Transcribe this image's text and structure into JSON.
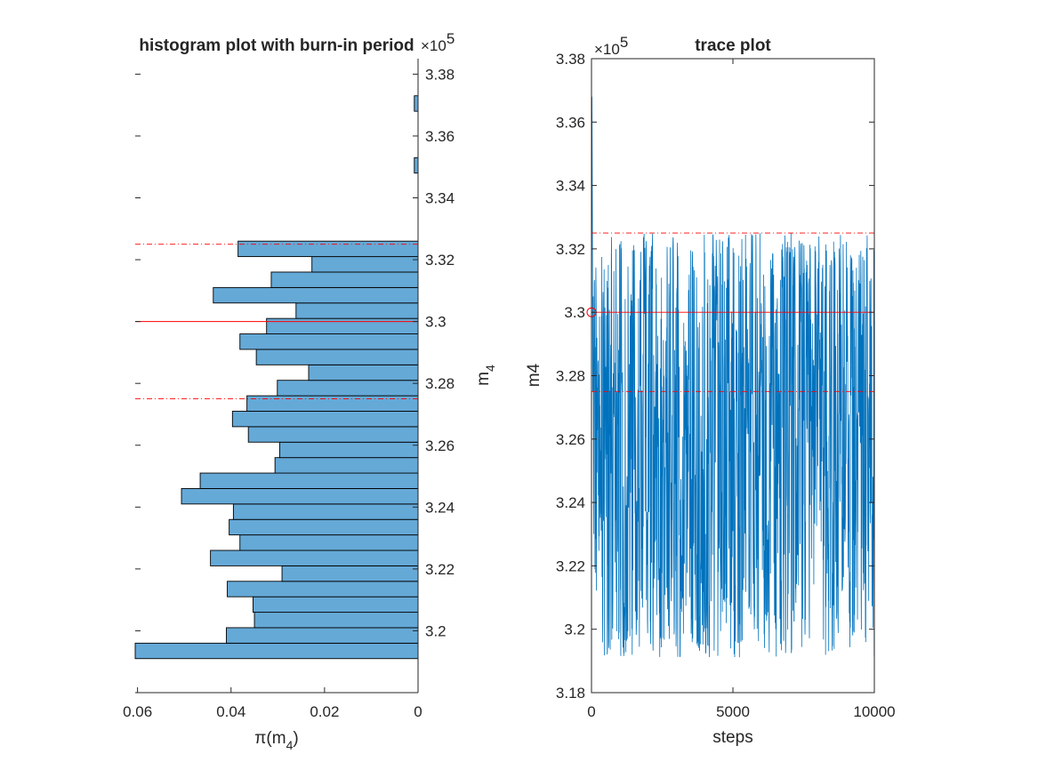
{
  "figure": {
    "background": "#ffffff",
    "axis_color": "#262626"
  },
  "chart_data": [
    {
      "type": "bar",
      "orientation": "horizontal",
      "title": "histogram plot with burn-in period",
      "xlabel": "π(m_4)",
      "xlabel_parts": {
        "base": "π(m",
        "sub": "4",
        "close": ")"
      },
      "ylabel_parts": {
        "base": "m",
        "sub": "4"
      },
      "ylabel_position": "right",
      "x_direction": "reversed",
      "xlim": [
        0,
        0.0605
      ],
      "xticks": [
        0.06,
        0.04,
        0.02,
        0
      ],
      "xtick_labels": [
        "0.06",
        "0.04",
        "0.02",
        "0"
      ],
      "ylim": [
        318000,
        338500
      ],
      "yticks": [
        320000,
        322000,
        324000,
        326000,
        328000,
        330000,
        332000,
        334000,
        336000,
        338000
      ],
      "ytick_labels": [
        "3.2",
        "3.22",
        "3.24",
        "3.26",
        "3.28",
        "3.3",
        "3.32",
        "3.34",
        "3.36",
        "3.38"
      ],
      "y_exponent": "5",
      "bar_color": "#65a9d7",
      "bar_edge": "#000000",
      "bins": [
        {
          "lo": 319100,
          "hi": 319600,
          "value": 0.0605
        },
        {
          "lo": 319600,
          "hi": 320100,
          "value": 0.041
        },
        {
          "lo": 320100,
          "hi": 320600,
          "value": 0.035
        },
        {
          "lo": 320600,
          "hi": 321100,
          "value": 0.0353
        },
        {
          "lo": 321100,
          "hi": 321600,
          "value": 0.0408
        },
        {
          "lo": 321600,
          "hi": 322100,
          "value": 0.0291
        },
        {
          "lo": 322100,
          "hi": 322600,
          "value": 0.0444
        },
        {
          "lo": 322600,
          "hi": 323100,
          "value": 0.0381
        },
        {
          "lo": 323100,
          "hi": 323600,
          "value": 0.0404
        },
        {
          "lo": 323600,
          "hi": 324100,
          "value": 0.0395
        },
        {
          "lo": 324100,
          "hi": 324600,
          "value": 0.0506
        },
        {
          "lo": 324600,
          "hi": 325100,
          "value": 0.0466
        },
        {
          "lo": 325100,
          "hi": 325600,
          "value": 0.0306
        },
        {
          "lo": 325600,
          "hi": 326100,
          "value": 0.0296
        },
        {
          "lo": 326100,
          "hi": 326600,
          "value": 0.0363
        },
        {
          "lo": 326600,
          "hi": 327100,
          "value": 0.0397
        },
        {
          "lo": 327100,
          "hi": 327600,
          "value": 0.0366
        },
        {
          "lo": 327600,
          "hi": 328100,
          "value": 0.0301
        },
        {
          "lo": 328100,
          "hi": 328600,
          "value": 0.0234
        },
        {
          "lo": 328600,
          "hi": 329100,
          "value": 0.0346
        },
        {
          "lo": 329100,
          "hi": 329600,
          "value": 0.0381
        },
        {
          "lo": 329600,
          "hi": 330100,
          "value": 0.0324
        },
        {
          "lo": 330100,
          "hi": 330600,
          "value": 0.0261
        },
        {
          "lo": 330600,
          "hi": 331100,
          "value": 0.0438
        },
        {
          "lo": 331100,
          "hi": 331600,
          "value": 0.0314
        },
        {
          "lo": 331600,
          "hi": 332100,
          "value": 0.0227
        },
        {
          "lo": 332100,
          "hi": 332600,
          "value": 0.0385
        },
        {
          "lo": 334800,
          "hi": 335300,
          "value": 0.0008
        },
        {
          "lo": 336800,
          "hi": 337300,
          "value": 0.0008
        }
      ],
      "reference_lines": [
        {
          "y": 332500,
          "style": "dashdot",
          "color": "#ff0000"
        },
        {
          "y": 330000,
          "style": "solid",
          "color": "#ff0000"
        },
        {
          "y": 327500,
          "style": "dashdot",
          "color": "#ff0000"
        }
      ]
    },
    {
      "type": "line",
      "title": "trace plot",
      "xlabel": "steps",
      "ylabel": "m4",
      "xlim": [
        0,
        10000
      ],
      "xticks": [
        0,
        5000,
        10000
      ],
      "xtick_labels": [
        "0",
        "5000",
        "10000"
      ],
      "ylim": [
        318000,
        338000
      ],
      "yticks": [
        318000,
        320000,
        322000,
        324000,
        326000,
        328000,
        330000,
        332000,
        334000,
        336000,
        338000
      ],
      "ytick_labels": [
        "3.18",
        "3.2",
        "3.22",
        "3.24",
        "3.26",
        "3.28",
        "3.3",
        "3.32",
        "3.34",
        "3.36",
        "3.38"
      ],
      "y_exponent": "5",
      "line_color": "#0072bd",
      "start_marker": {
        "x": 0,
        "y": 330000,
        "color": "#ff0000",
        "shape": "circle"
      },
      "burn_in": [
        [
          0,
          330000
        ],
        [
          8,
          333500
        ],
        [
          16,
          336800
        ],
        [
          25,
          334800
        ],
        [
          35,
          332000
        ],
        [
          45,
          327500
        ],
        [
          60,
          330500
        ],
        [
          75,
          323000
        ]
      ],
      "sample_range": {
        "x_start": 80,
        "x_end": 10000,
        "n_points": 1600,
        "min": 319100,
        "max": 332500
      },
      "reference_lines": [
        {
          "y": 332500,
          "style": "dashdot",
          "color": "#ff0000"
        },
        {
          "y": 330000,
          "style": "solid",
          "color": "#ff0000"
        },
        {
          "y": 327500,
          "style": "dashdot",
          "color": "#ff0000"
        }
      ]
    }
  ]
}
